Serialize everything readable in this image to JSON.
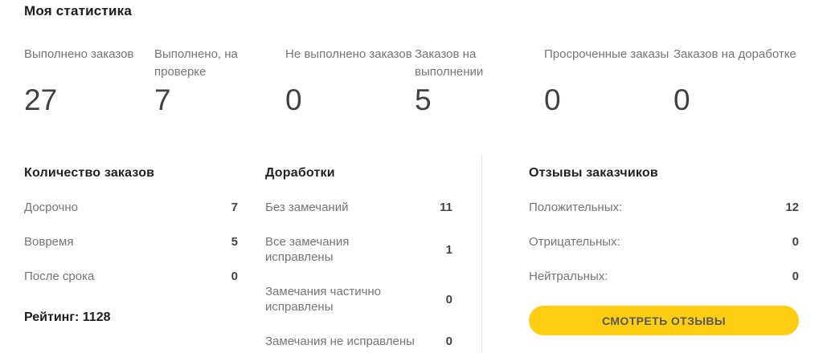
{
  "page": {
    "title": "Моя статистика"
  },
  "stats": {
    "items": [
      {
        "label": "Выполнено заказов",
        "value": "27"
      },
      {
        "label": "Выполнено, на\nпроверке",
        "value": "7"
      },
      {
        "label": "Не выполнено заказов",
        "value": "0"
      },
      {
        "label": "Заказов на\nвыполнении",
        "value": "5"
      },
      {
        "label": "Просроченные заказы",
        "value": "0"
      },
      {
        "label": "Заказов на доработке",
        "value": "0"
      }
    ]
  },
  "orders": {
    "header": "Количество заказов",
    "rows": [
      {
        "label": "Досрочно",
        "value": "7"
      },
      {
        "label": "Вовремя",
        "value": "5"
      },
      {
        "label": "После срока",
        "value": "0"
      }
    ],
    "rating": "Рейтинг: 1128"
  },
  "revisions": {
    "header": "Доработки",
    "rows": [
      {
        "label": "Без замечаний",
        "value": "11"
      },
      {
        "label": "Все замечания исправлены",
        "value": "1"
      },
      {
        "label": "Замечания частично исправлены",
        "value": "0"
      },
      {
        "label": "Замечания не исправлены",
        "value": "0"
      }
    ]
  },
  "reviews": {
    "header": "Отзывы заказчиков",
    "rows": [
      {
        "label": "Положительных:",
        "value": "12"
      },
      {
        "label": "Отрицательных:",
        "value": "0"
      },
      {
        "label": "Нейтральных:",
        "value": "0"
      }
    ],
    "button_label": "СМОТРЕТЬ ОТЗЫВЫ"
  },
  "colors": {
    "accent_yellow": "#FFCE12",
    "button_text": "#55585E",
    "muted_text": "#757575",
    "divider": "#e2e2e2"
  }
}
